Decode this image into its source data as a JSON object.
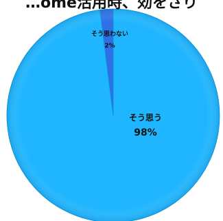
{
  "chart_data": {
    "type": "pie",
    "title": "…ome活用時、効をさり",
    "categories": [
      "そう思わない",
      "そう思う"
    ],
    "values": [
      2,
      98
    ],
    "value_labels": [
      "2%",
      "98%"
    ],
    "legend": "none",
    "colors": {
      "そう思わない": "#2f6fe6",
      "そう思う": "#1fb6ff",
      "outline": "#0a8fd6",
      "label": "#111111"
    }
  }
}
